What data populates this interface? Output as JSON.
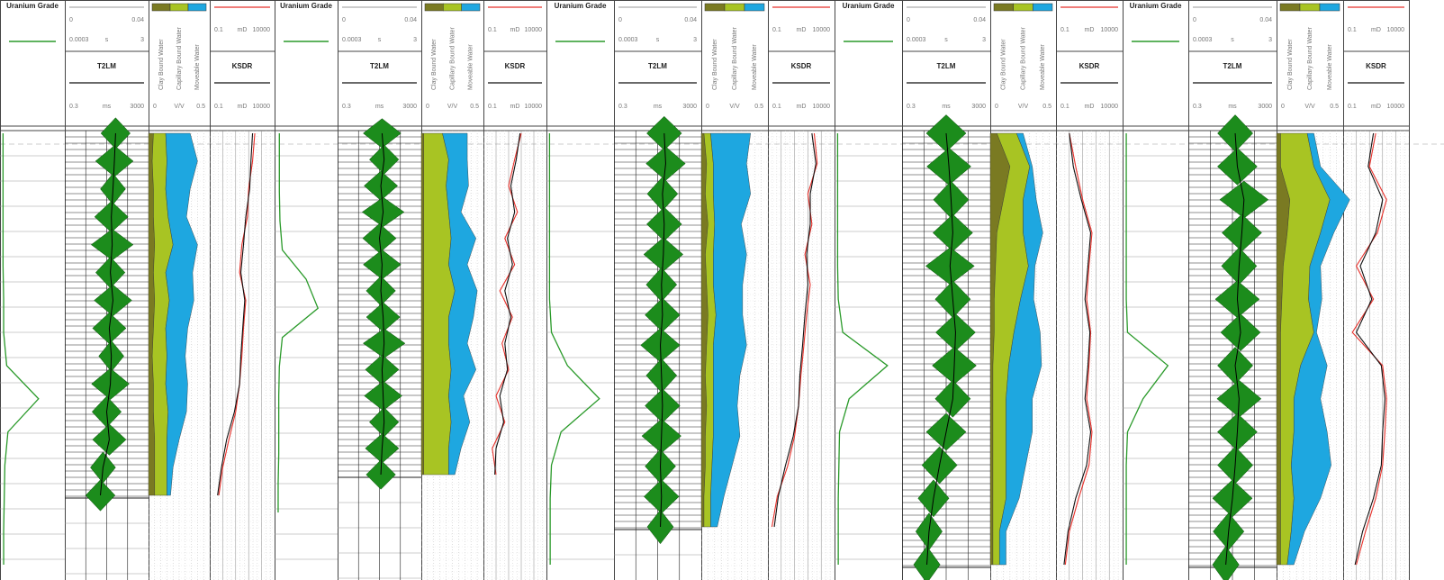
{
  "tracks": {
    "uranium": {
      "title": "Uranium Grade",
      "color": "#2a9a2a",
      "xlim": [
        0,
        1
      ]
    },
    "t2lm": {
      "title": "T2LM",
      "ref_min": 0,
      "ref_max": 0.04,
      "s_min": 0.0003,
      "s_unit": "s",
      "s_max": 3,
      "min": 0.3,
      "unit": "ms",
      "max": 3000,
      "fill": "#1c8c1c"
    },
    "vv": {
      "legend": [
        {
          "name": "Clay Bound Water",
          "color": "#7a7a22"
        },
        {
          "name": "Capillary Bound Water",
          "color": "#a8c423"
        },
        {
          "name": "Moveable Water",
          "color": "#1ea7e0"
        }
      ],
      "min": 0,
      "unit": "V/V",
      "max": 0.5
    },
    "ksdr": {
      "title": "KSDR",
      "red": {
        "min": 0.1,
        "unit": "mD",
        "max": 10000,
        "color": "#e8302a"
      },
      "black": {
        "min": 0.1,
        "unit": "mD",
        "max": 10000,
        "color": "#111111"
      }
    }
  },
  "wells": [
    {
      "uranium": [
        0.02,
        0.02,
        0.02,
        0.02,
        0.02,
        0.03,
        0.03,
        0.08,
        0.6,
        0.1,
        0.05,
        0.04,
        0.03,
        0.03
      ],
      "t2lm": [
        80,
        70,
        60,
        50,
        55,
        45,
        60,
        40,
        50,
        45,
        30,
        40,
        20,
        15
      ],
      "t2_amp": [
        0.7,
        0.9,
        0.6,
        0.8,
        1.0,
        0.7,
        0.9,
        0.8,
        0.6,
        0.9,
        0.7,
        0.8,
        0.6,
        0.7
      ],
      "clay": [
        0.04,
        0.03,
        0.04,
        0.04,
        0.05,
        0.04,
        0.05,
        0.04,
        0.03,
        0.04,
        0.04,
        0.05,
        0.05,
        0.05
      ],
      "capillary": [
        0.1,
        0.12,
        0.1,
        0.12,
        0.15,
        0.1,
        0.12,
        0.1,
        0.12,
        0.1,
        0.12,
        0.1,
        0.1,
        0.1
      ],
      "moveable": [
        0.2,
        0.25,
        0.2,
        0.15,
        0.2,
        0.22,
        0.2,
        0.18,
        0.15,
        0.18,
        0.15,
        0.1,
        0.05,
        0.03
      ],
      "ksdr_red": [
        300,
        200,
        100,
        80,
        30,
        20,
        60,
        40,
        30,
        20,
        10,
        3,
        1,
        0.5
      ],
      "ksdr_black": [
        200,
        150,
        120,
        60,
        40,
        25,
        50,
        35,
        25,
        20,
        8,
        2,
        0.8,
        0.4
      ]
    },
    {
      "uranium": [
        0.05,
        0.05,
        0.05,
        0.06,
        0.1,
        0.5,
        0.7,
        0.1,
        0.05,
        0.04,
        0.04,
        0.04,
        0.03,
        0.03
      ],
      "t2lm": [
        40,
        50,
        35,
        45,
        30,
        40,
        35,
        45,
        50,
        40,
        45,
        50,
        40,
        35
      ],
      "t2_amp": [
        0.9,
        0.7,
        0.8,
        1.0,
        0.8,
        0.9,
        0.7,
        0.8,
        1.0,
        0.8,
        0.9,
        0.7,
        0.8,
        0.7
      ],
      "clay": [
        0.02,
        0.02,
        0.02,
        0.02,
        0.02,
        0.02,
        0.02,
        0.02,
        0.02,
        0.02,
        0.02,
        0.02,
        0.02,
        0.02
      ],
      "capillary": [
        0.15,
        0.2,
        0.18,
        0.2,
        0.22,
        0.2,
        0.25,
        0.2,
        0.2,
        0.22,
        0.2,
        0.22,
        0.2,
        0.2
      ],
      "moveable": [
        0.2,
        0.15,
        0.18,
        0.1,
        0.2,
        0.15,
        0.18,
        0.2,
        0.15,
        0.2,
        0.12,
        0.15,
        0.1,
        0.05
      ],
      "ksdr_red": [
        100,
        30,
        10,
        50,
        5,
        30,
        2,
        20,
        3,
        10,
        1,
        5,
        0.5,
        1
      ],
      "ksdr_black": [
        80,
        40,
        15,
        30,
        8,
        20,
        5,
        15,
        5,
        8,
        2,
        4,
        1,
        0.8
      ]
    },
    {
      "uranium": [
        0.02,
        0.02,
        0.02,
        0.02,
        0.02,
        0.02,
        0.05,
        0.3,
        0.8,
        0.2,
        0.05,
        0.03,
        0.03,
        0.03
      ],
      "t2lm": [
        60,
        70,
        50,
        60,
        55,
        45,
        50,
        40,
        45,
        50,
        45,
        40,
        45,
        40
      ],
      "t2_amp": [
        0.8,
        0.9,
        0.7,
        0.8,
        0.9,
        0.7,
        0.8,
        0.9,
        0.7,
        0.8,
        0.9,
        0.7,
        0.8,
        0.6
      ],
      "clay": [
        0.02,
        0.04,
        0.03,
        0.05,
        0.03,
        0.04,
        0.05,
        0.04,
        0.03,
        0.04,
        0.03,
        0.03,
        0.02,
        0.02
      ],
      "capillary": [
        0.05,
        0.05,
        0.06,
        0.05,
        0.06,
        0.05,
        0.06,
        0.05,
        0.06,
        0.05,
        0.06,
        0.05,
        0.05,
        0.05
      ],
      "moveable": [
        0.3,
        0.25,
        0.28,
        0.2,
        0.25,
        0.22,
        0.2,
        0.25,
        0.2,
        0.18,
        0.2,
        0.15,
        0.1,
        0.05
      ],
      "ksdr_red": [
        300,
        500,
        100,
        200,
        60,
        150,
        80,
        50,
        30,
        20,
        10,
        3,
        0.5,
        0.2
      ],
      "ksdr_black": [
        200,
        400,
        150,
        150,
        80,
        100,
        60,
        40,
        25,
        20,
        8,
        2,
        0.6,
        0.3
      ]
    },
    {
      "uranium": [
        0.02,
        0.02,
        0.02,
        0.02,
        0.02,
        0.03,
        0.1,
        0.8,
        0.2,
        0.05,
        0.04,
        0.03,
        0.03,
        0.03
      ],
      "t2lm": [
        30,
        40,
        50,
        60,
        45,
        60,
        80,
        70,
        60,
        30,
        15,
        8,
        5,
        4
      ],
      "t2_amp": [
        0.9,
        1.0,
        0.8,
        0.9,
        1.1,
        0.8,
        0.9,
        1.0,
        0.8,
        0.9,
        0.8,
        0.7,
        0.6,
        0.6
      ],
      "clay": [
        0.05,
        0.15,
        0.1,
        0.05,
        0.04,
        0.03,
        0.03,
        0.02,
        0.02,
        0.02,
        0.02,
        0.02,
        0.02,
        0.02
      ],
      "capillary": [
        0.15,
        0.15,
        0.15,
        0.2,
        0.25,
        0.2,
        0.15,
        0.12,
        0.1,
        0.1,
        0.1,
        0.1,
        0.05,
        0.05
      ],
      "moveable": [
        0.05,
        0.02,
        0.1,
        0.15,
        0.05,
        0.1,
        0.2,
        0.25,
        0.2,
        0.2,
        0.15,
        0.1,
        0.05,
        0.05
      ],
      "ksdr_red": [
        1,
        3,
        10,
        50,
        30,
        20,
        40,
        30,
        20,
        50,
        30,
        5,
        1,
        0.5
      ],
      "ksdr_black": [
        1,
        2,
        8,
        40,
        25,
        15,
        35,
        25,
        15,
        40,
        20,
        3,
        0.8,
        0.4
      ]
    },
    {
      "uranium": [
        0.03,
        0.03,
        0.03,
        0.03,
        0.03,
        0.03,
        0.05,
        0.7,
        0.3,
        0.05,
        0.03,
        0.03,
        0.03,
        0.03
      ],
      "t2lm": [
        40,
        50,
        100,
        80,
        60,
        50,
        70,
        40,
        60,
        50,
        40,
        30,
        20,
        15
      ],
      "t2_amp": [
        0.8,
        0.9,
        1.1,
        0.9,
        0.8,
        1.0,
        0.9,
        0.8,
        1.0,
        0.9,
        0.8,
        0.9,
        0.7,
        0.6
      ],
      "clay": [
        0.03,
        0.03,
        0.1,
        0.08,
        0.05,
        0.04,
        0.03,
        0.03,
        0.03,
        0.03,
        0.03,
        0.03,
        0.03,
        0.03
      ],
      "capillary": [
        0.2,
        0.25,
        0.3,
        0.25,
        0.2,
        0.2,
        0.25,
        0.15,
        0.1,
        0.1,
        0.08,
        0.1,
        0.08,
        0.05
      ],
      "moveable": [
        0.05,
        0.05,
        0.15,
        0.1,
        0.08,
        0.1,
        0.02,
        0.2,
        0.2,
        0.25,
        0.3,
        0.2,
        0.1,
        0.05
      ],
      "ksdr_red": [
        30,
        10,
        200,
        40,
        1,
        20,
        0.5,
        100,
        200,
        150,
        100,
        30,
        5,
        1
      ],
      "ksdr_black": [
        20,
        8,
        100,
        30,
        2,
        15,
        1,
        80,
        150,
        100,
        80,
        20,
        3,
        0.8
      ]
    }
  ]
}
